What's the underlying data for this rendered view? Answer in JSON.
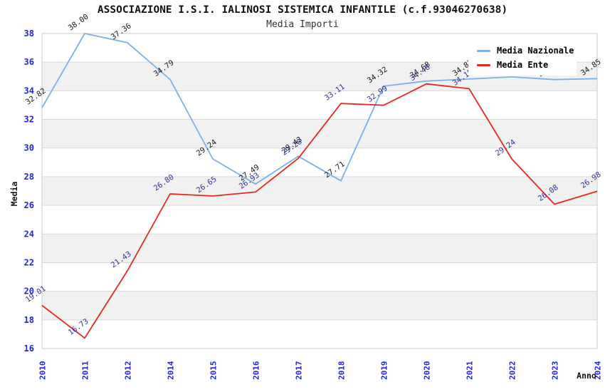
{
  "header": {
    "title": "ASSOCIAZIONE I.S.I. IALINOSI SISTEMICA INFANTILE (c.f.93046270638)",
    "subtitle": "Media Importi"
  },
  "legend": {
    "items": [
      {
        "label": "Media Nazionale",
        "color": "#7cb0e8"
      },
      {
        "label": "Media Ente",
        "color": "#e8281e"
      }
    ]
  },
  "chart_data": {
    "type": "line",
    "title": "ASSOCIAZIONE I.S.I. IALINOSI SISTEMICA INFANTILE (c.f.93046270638)",
    "subtitle": "Media Importi",
    "xlabel": "Anno",
    "ylabel": "Media",
    "categories": [
      "2010",
      "2011",
      "2012",
      "2014",
      "2015",
      "2016",
      "2017",
      "2018",
      "2019",
      "2020",
      "2021",
      "2022",
      "2023",
      "2024"
    ],
    "series": [
      {
        "name": "Media Nazionale",
        "color": "#7cb0e8",
        "label_color": "#1a1a1a",
        "values": [
          32.82,
          38.0,
          37.36,
          34.79,
          29.24,
          27.49,
          29.43,
          27.71,
          34.32,
          34.68,
          34.82,
          34.97,
          34.78,
          34.85
        ],
        "estimated_indices_occluded_by_legend": [
          11,
          12
        ]
      },
      {
        "name": "Media Ente",
        "color": "#e8281e",
        "label_color": "#3333a0",
        "values": [
          19.01,
          16.73,
          21.43,
          26.8,
          26.65,
          26.93,
          29.28,
          33.11,
          32.99,
          34.48,
          34.15,
          29.24,
          26.08,
          26.98
        ],
        "estimated_indices_occluded_by_legend": []
      }
    ],
    "ylim": [
      16,
      38
    ],
    "ytick_step": 2,
    "yticks": [
      16,
      18,
      20,
      22,
      24,
      26,
      28,
      30,
      32,
      34,
      36,
      38
    ],
    "grid": "horizontal-gridlines-with-alternating-bands",
    "legend_position": "top-right",
    "palette": {
      "tick_label_color": "#2222dd",
      "band_gray": "#f1f1f1",
      "gridline": "#d9d9d9",
      "plot_border": "#c9c9c9",
      "axis_title_color": "#111111",
      "background": "#ffffff"
    }
  }
}
